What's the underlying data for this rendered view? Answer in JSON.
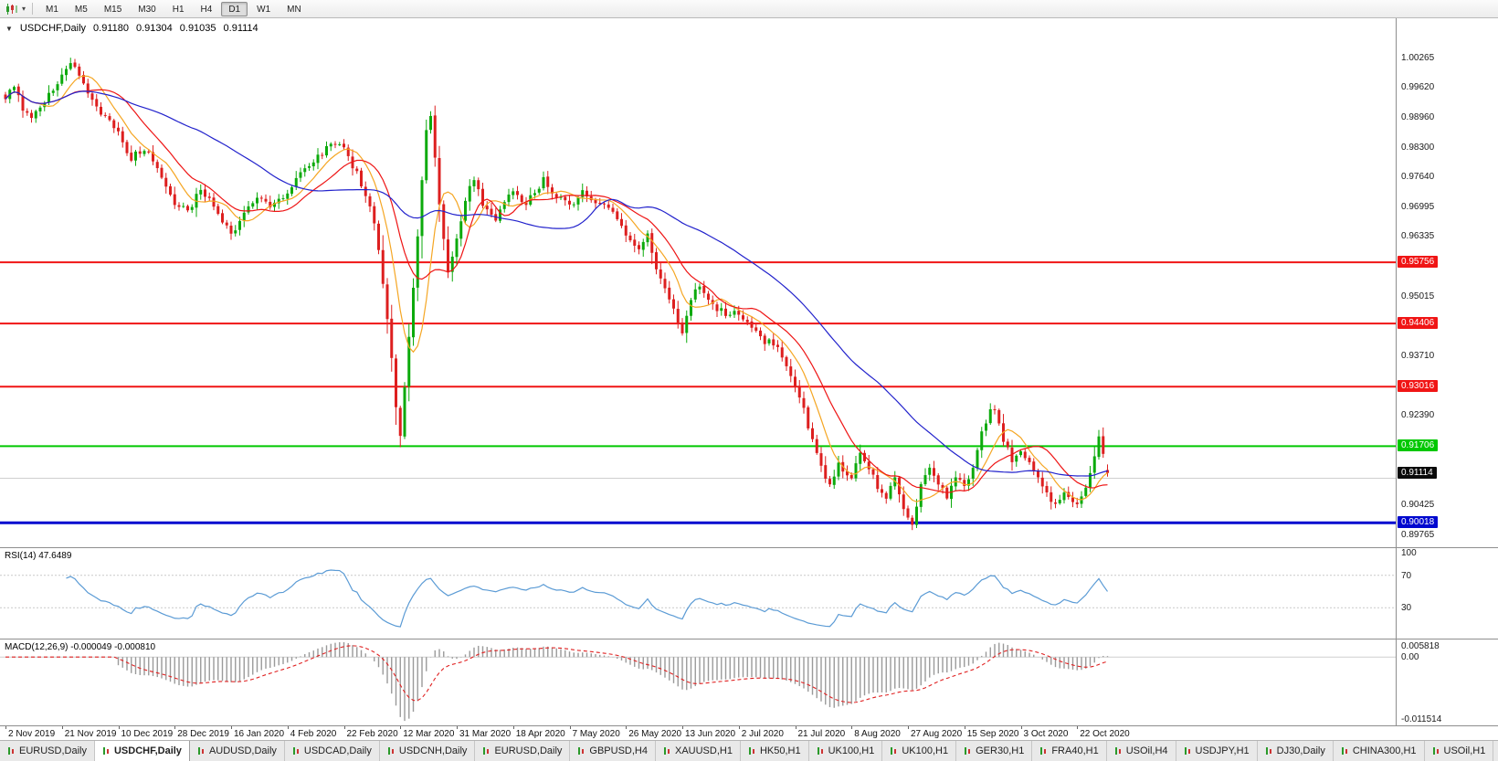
{
  "toolbar": {
    "chart_type_icon": "candlestick-chart-icon",
    "dropdown_caret": "▾",
    "timeframes": [
      "M1",
      "M5",
      "M15",
      "M30",
      "H1",
      "H4",
      "D1",
      "W1",
      "MN"
    ],
    "active_timeframe": "D1"
  },
  "chart": {
    "collapse_icon": "▼",
    "symbol_title": "USDCHF,Daily",
    "open": "0.91180",
    "high": "0.91304",
    "low": "0.91035",
    "close": "0.91114",
    "candle_colors": {
      "up": "#0caa0c",
      "down": "#dd1f1f"
    },
    "scale_labels": [
      "1.00265",
      "0.99620",
      "0.98960",
      "0.98300",
      "0.97640",
      "0.96995",
      "0.96335",
      "0.95015",
      "0.93710",
      "0.92390",
      "0.90425",
      "0.89765"
    ],
    "levels": [
      {
        "value": 0.95756,
        "label": "0.95756",
        "color": "#f01515",
        "width": 2
      },
      {
        "value": 0.94406,
        "label": "0.94406",
        "color": "#f01515",
        "width": 2
      },
      {
        "value": 0.93016,
        "label": "0.93016",
        "color": "#f01515",
        "width": 2
      },
      {
        "value": 0.91706,
        "label": "0.91706",
        "color": "#00c800",
        "width": 2
      },
      {
        "value": 0.90018,
        "label": "0.90018",
        "color": "#0008cf",
        "width": 3
      }
    ],
    "minor_line": {
      "value": 0.91,
      "color": "#cfcfcf"
    },
    "current_price": {
      "value": 0.91114,
      "label": "0.91114",
      "bg": "#0a0a0a"
    }
  },
  "chart_data": {
    "type": "candlestick",
    "title": "USDCHF,Daily",
    "x_labels": [
      "2 Nov 2019",
      "21 Nov 2019",
      "10 Dec 2019",
      "28 Dec 2019",
      "16 Jan 2020",
      "4 Feb 2020",
      "22 Feb 2020",
      "12 Mar 2020",
      "31 Mar 2020",
      "18 Apr 2020",
      "7 May 2020",
      "26 May 2020",
      "13 Jun 2020",
      "2 Jul 2020",
      "21 Jul 2020",
      "8 Aug 2020",
      "27 Aug 2020",
      "15 Sep 2020",
      "3 Oct 2020",
      "22 Oct 2020"
    ],
    "bars_per_label": 13,
    "bar_count": 255,
    "y_range": [
      0.8948,
      1.0113
    ],
    "current_bar": {
      "open": 0.9118,
      "high": 0.91304,
      "low": 0.91035,
      "close": 0.91114
    },
    "close_waypoints": [
      [
        0,
        0.9935
      ],
      [
        2,
        0.9962
      ],
      [
        4,
        0.9915
      ],
      [
        6,
        0.9892
      ],
      [
        9,
        0.993
      ],
      [
        12,
        0.9972
      ],
      [
        14,
        1.0008
      ],
      [
        15,
        1.002
      ],
      [
        17,
        0.9985
      ],
      [
        19,
        0.9945
      ],
      [
        22,
        0.9908
      ],
      [
        26,
        0.986
      ],
      [
        29,
        0.9805
      ],
      [
        32,
        0.9828
      ],
      [
        35,
        0.9778
      ],
      [
        39,
        0.9706
      ],
      [
        42,
        0.9688
      ],
      [
        45,
        0.9735
      ],
      [
        48,
        0.9702
      ],
      [
        52,
        0.9638
      ],
      [
        55,
        0.9678
      ],
      [
        58,
        0.9718
      ],
      [
        61,
        0.9695
      ],
      [
        65,
        0.9732
      ],
      [
        69,
        0.9778
      ],
      [
        73,
        0.9818
      ],
      [
        76,
        0.9842
      ],
      [
        78,
        0.9825
      ],
      [
        81,
        0.9772
      ],
      [
        84,
        0.9705
      ],
      [
        86,
        0.9605
      ],
      [
        88,
        0.9455
      ],
      [
        90,
        0.926
      ],
      [
        91,
        0.919
      ],
      [
        93,
        0.9405
      ],
      [
        95,
        0.964
      ],
      [
        97,
        0.986
      ],
      [
        98,
        0.9895
      ],
      [
        100,
        0.9705
      ],
      [
        102,
        0.9555
      ],
      [
        104,
        0.9625
      ],
      [
        106,
        0.9718
      ],
      [
        108,
        0.9758
      ],
      [
        110,
        0.9705
      ],
      [
        113,
        0.9672
      ],
      [
        117,
        0.9738
      ],
      [
        120,
        0.9702
      ],
      [
        124,
        0.9758
      ],
      [
        127,
        0.9722
      ],
      [
        130,
        0.97
      ],
      [
        133,
        0.973
      ],
      [
        136,
        0.9712
      ],
      [
        140,
        0.9682
      ],
      [
        143,
        0.9635
      ],
      [
        146,
        0.9602
      ],
      [
        148,
        0.9632
      ],
      [
        150,
        0.9565
      ],
      [
        153,
        0.9488
      ],
      [
        156,
        0.9425
      ],
      [
        158,
        0.9498
      ],
      [
        160,
        0.952
      ],
      [
        163,
        0.9482
      ],
      [
        166,
        0.9462
      ],
      [
        169,
        0.9465
      ],
      [
        172,
        0.9432
      ],
      [
        175,
        0.9402
      ],
      [
        178,
        0.9392
      ],
      [
        180,
        0.9352
      ],
      [
        182,
        0.9302
      ],
      [
        184,
        0.9252
      ],
      [
        186,
        0.9182
      ],
      [
        188,
        0.9122
      ],
      [
        190,
        0.9082
      ],
      [
        192,
        0.9132
      ],
      [
        195,
        0.9102
      ],
      [
        197,
        0.9152
      ],
      [
        199,
        0.9122
      ],
      [
        201,
        0.9082
      ],
      [
        203,
        0.9052
      ],
      [
        205,
        0.9102
      ],
      [
        207,
        0.9032
      ],
      [
        209,
        0.9002
      ],
      [
        211,
        0.9082
      ],
      [
        213,
        0.9122
      ],
      [
        215,
        0.9092
      ],
      [
        217,
        0.9062
      ],
      [
        219,
        0.9102
      ],
      [
        221,
        0.9082
      ],
      [
        223,
        0.9122
      ],
      [
        225,
        0.9202
      ],
      [
        227,
        0.9246
      ],
      [
        228,
        0.9256
      ],
      [
        230,
        0.9182
      ],
      [
        232,
        0.9142
      ],
      [
        234,
        0.9162
      ],
      [
        236,
        0.9132
      ],
      [
        238,
        0.9102
      ],
      [
        240,
        0.9062
      ],
      [
        242,
        0.9046
      ],
      [
        244,
        0.9072
      ],
      [
        246,
        0.9052
      ],
      [
        247,
        0.9042
      ],
      [
        249,
        0.9082
      ],
      [
        251,
        0.9152
      ],
      [
        252,
        0.9185
      ],
      [
        253,
        0.9155
      ],
      [
        254,
        0.9111
      ]
    ],
    "overlays": {
      "moving_averages": [
        {
          "period": 8,
          "color": "#f5a623"
        },
        {
          "period": 16,
          "color": "#ee1515"
        },
        {
          "period": 45,
          "color": "#2222cc"
        }
      ],
      "horizontal_lines": [
        0.95756,
        0.94406,
        0.93016,
        0.91706,
        0.90018
      ]
    },
    "indicators": [
      {
        "type": "RSI",
        "period": 14,
        "last_value": 47.6489,
        "levels": [
          30,
          70
        ]
      },
      {
        "type": "MACD",
        "params": [
          12,
          26,
          9
        ],
        "last_main": -4.9e-05,
        "last_signal": -0.00081
      }
    ]
  },
  "rsi_panel": {
    "label": "RSI(14) 47.6489",
    "period": 14,
    "color": "#5b9bd5",
    "levels": [
      70,
      30
    ],
    "scale_labels": [
      "100",
      "70",
      "30"
    ]
  },
  "macd_panel": {
    "label": "MACD(12,26,9) -0.000049 -0.000810",
    "colors": {
      "histogram": "#9a9a9a",
      "signal": "#e02020"
    },
    "scale_labels": {
      "top": "0.005818",
      "zero": "0.00",
      "bottom": "-0.011514"
    }
  },
  "time_axis": {
    "labels": [
      "2 Nov 2019",
      "21 Nov 2019",
      "10 Dec 2019",
      "28 Dec 2019",
      "16 Jan 2020",
      "4 Feb 2020",
      "22 Feb 2020",
      "12 Mar 2020",
      "31 Mar 2020",
      "18 Apr 2020",
      "7 May 2020",
      "26 May 2020",
      "13 Jun 2020",
      "2 Jul 2020",
      "21 Jul 2020",
      "8 Aug 2020",
      "27 Aug 2020",
      "15 Sep 2020",
      "3 Oct 2020",
      "22 Oct 2020"
    ]
  },
  "tab_bar": {
    "tabs": [
      {
        "label": "EURUSD,Daily",
        "active": false
      },
      {
        "label": "USDCHF,Daily",
        "active": true
      },
      {
        "label": "AUDUSD,Daily",
        "active": false
      },
      {
        "label": "USDCAD,Daily",
        "active": false
      },
      {
        "label": "USDCNH,Daily",
        "active": false
      },
      {
        "label": "EURUSD,Daily",
        "active": false
      },
      {
        "label": "GBPUSD,H4",
        "active": false
      },
      {
        "label": "XAUUSD,H1",
        "active": false
      },
      {
        "label": "HK50,H1",
        "active": false
      },
      {
        "label": "UK100,H1",
        "active": false
      },
      {
        "label": "UK100,H1",
        "active": false
      },
      {
        "label": "GER30,H1",
        "active": false
      },
      {
        "label": "FRA40,H1",
        "active": false
      },
      {
        "label": "USOil,H4",
        "active": false
      },
      {
        "label": "USDJPY,H1",
        "active": false
      },
      {
        "label": "DJ30,Daily",
        "active": false
      },
      {
        "label": "CHINA300,H1",
        "active": false
      },
      {
        "label": "USOil,H1",
        "active": false
      }
    ]
  }
}
